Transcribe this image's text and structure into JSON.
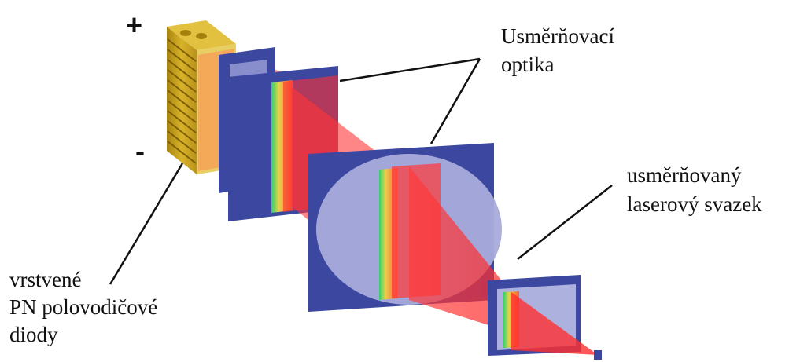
{
  "labels": {
    "plus": "+",
    "minus": "-",
    "optics_line1": "Usměrňovací",
    "optics_line2": "optika",
    "beam_line1": "usměrňovaný",
    "beam_line2": "laserový  svazek",
    "diodes_line1": "vrstvené",
    "diodes_line2": "PN polovodičové",
    "diodes_line3": "diody"
  },
  "colors": {
    "background": "#ffffff",
    "diode_stack": "#c9a21c",
    "lens_panel": "#3c47a0",
    "lens_glass": "#a9acdb",
    "beam": "#ee2a2a",
    "leader_line": "#111111"
  }
}
